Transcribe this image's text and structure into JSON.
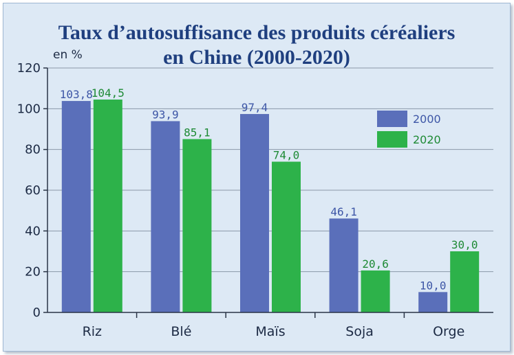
{
  "chart_data": {
    "type": "bar",
    "title_line1": "Taux d’autosuffisance des produits céréaliers",
    "title_line2": "en Chine (2000-2020)",
    "ylabel": "en %",
    "ylim": [
      0,
      120
    ],
    "yticks": [
      0,
      20,
      40,
      60,
      80,
      100,
      120
    ],
    "grid": true,
    "legend_position": "top-right",
    "categories": [
      "Riz",
      "Blé",
      "Maïs",
      "Soja",
      "Orge"
    ],
    "series": [
      {
        "name": "2000",
        "color": "#5a6fba",
        "values": [
          103.8,
          93.9,
          97.4,
          46.1,
          10.0
        ],
        "labels": [
          "103,8",
          "93,9",
          "97,4",
          "46,1",
          "10,0"
        ]
      },
      {
        "name": "2020",
        "color": "#2db24a",
        "values": [
          104.5,
          85.1,
          74.0,
          20.6,
          30.0
        ],
        "labels": [
          "104,5",
          "85,1",
          "74,0",
          "20,6",
          "30,0"
        ]
      }
    ],
    "colors": {
      "title": "#1f3f7f",
      "label_2000": "#3d56a6",
      "label_2020": "#1e8a35",
      "grid": "#8a97a8",
      "axis": "#2a3446"
    }
  }
}
